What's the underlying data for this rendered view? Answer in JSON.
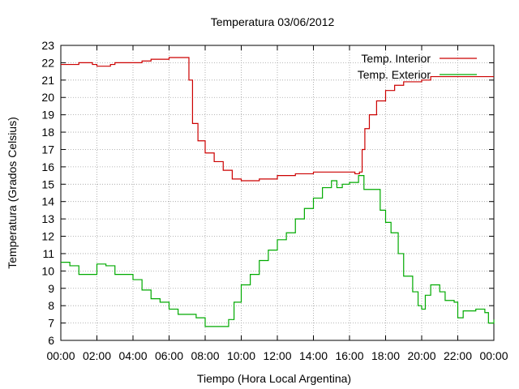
{
  "chart_data": {
    "type": "line",
    "title": "Temperatura 03/06/2012",
    "xlabel": "Tiempo (Hora Local Argentina)",
    "ylabel": "Temperatura (Grados Celsius)",
    "x_unit": "hours",
    "xlim": [
      0,
      24
    ],
    "ylim": [
      6,
      23
    ],
    "x_ticks": [
      "00:00",
      "02:00",
      "04:00",
      "06:00",
      "08:00",
      "10:00",
      "12:00",
      "14:00",
      "16:00",
      "18:00",
      "20:00",
      "22:00",
      "00:00"
    ],
    "y_ticks": [
      6,
      7,
      8,
      9,
      10,
      11,
      12,
      13,
      14,
      15,
      16,
      17,
      18,
      19,
      20,
      21,
      22,
      23
    ],
    "grid": true,
    "legend_position": "top-right",
    "series": [
      {
        "name": "Temp. Interior",
        "color": "#cc0000",
        "points": [
          [
            0,
            21.9
          ],
          [
            1,
            22.0
          ],
          [
            1.75,
            21.9
          ],
          [
            2,
            21.8
          ],
          [
            2.75,
            21.9
          ],
          [
            3,
            22.0
          ],
          [
            4,
            22.0
          ],
          [
            4.5,
            22.1
          ],
          [
            5,
            22.2
          ],
          [
            6,
            22.3
          ],
          [
            6.95,
            22.3
          ],
          [
            7.1,
            21.0
          ],
          [
            7.3,
            18.5
          ],
          [
            7.6,
            17.5
          ],
          [
            8,
            16.8
          ],
          [
            8.5,
            16.3
          ],
          [
            9,
            15.8
          ],
          [
            9.5,
            15.3
          ],
          [
            10,
            15.2
          ],
          [
            11,
            15.3
          ],
          [
            12,
            15.5
          ],
          [
            13,
            15.6
          ],
          [
            14,
            15.7
          ],
          [
            15,
            15.7
          ],
          [
            16,
            15.7
          ],
          [
            16.3,
            15.6
          ],
          [
            16.55,
            15.7
          ],
          [
            16.7,
            17.0
          ],
          [
            16.85,
            18.2
          ],
          [
            17.1,
            19.0
          ],
          [
            17.5,
            19.8
          ],
          [
            18,
            20.4
          ],
          [
            18.5,
            20.7
          ],
          [
            19,
            20.9
          ],
          [
            20,
            21.0
          ],
          [
            20.5,
            21.2
          ],
          [
            22,
            21.2
          ],
          [
            24,
            21.2
          ]
        ]
      },
      {
        "name": "Temp. Exterior",
        "color": "#00aa00",
        "points": [
          [
            0,
            10.5
          ],
          [
            0.5,
            10.3
          ],
          [
            1,
            9.8
          ],
          [
            1.5,
            9.8
          ],
          [
            2,
            10.4
          ],
          [
            2.5,
            10.3
          ],
          [
            3,
            9.8
          ],
          [
            3.5,
            9.8
          ],
          [
            4,
            9.5
          ],
          [
            4.5,
            8.9
          ],
          [
            5,
            8.4
          ],
          [
            5.5,
            8.2
          ],
          [
            6,
            7.8
          ],
          [
            6.5,
            7.5
          ],
          [
            7,
            7.5
          ],
          [
            7.5,
            7.3
          ],
          [
            8,
            6.8
          ],
          [
            8.5,
            6.8
          ],
          [
            9,
            6.8
          ],
          [
            9.3,
            7.2
          ],
          [
            9.6,
            8.2
          ],
          [
            10,
            9.2
          ],
          [
            10.5,
            9.8
          ],
          [
            11,
            10.6
          ],
          [
            11.5,
            11.2
          ],
          [
            12,
            11.8
          ],
          [
            12.5,
            12.2
          ],
          [
            13,
            13.0
          ],
          [
            13.5,
            13.6
          ],
          [
            14,
            14.2
          ],
          [
            14.5,
            14.8
          ],
          [
            15,
            15.2
          ],
          [
            15.3,
            14.8
          ],
          [
            15.6,
            15.0
          ],
          [
            16,
            15.1
          ],
          [
            16.5,
            15.5
          ],
          [
            16.8,
            14.7
          ],
          [
            17.3,
            14.7
          ],
          [
            17.7,
            13.5
          ],
          [
            18,
            12.8
          ],
          [
            18.3,
            12.2
          ],
          [
            18.7,
            11.0
          ],
          [
            19,
            9.7
          ],
          [
            19.5,
            8.8
          ],
          [
            19.8,
            8.0
          ],
          [
            20,
            7.8
          ],
          [
            20.2,
            8.6
          ],
          [
            20.5,
            9.2
          ],
          [
            21,
            8.8
          ],
          [
            21.3,
            8.3
          ],
          [
            21.8,
            8.2
          ],
          [
            22,
            7.3
          ],
          [
            22.3,
            7.7
          ],
          [
            23,
            7.8
          ],
          [
            23.5,
            7.6
          ],
          [
            23.7,
            7.0
          ],
          [
            24,
            7.2
          ]
        ]
      }
    ]
  }
}
